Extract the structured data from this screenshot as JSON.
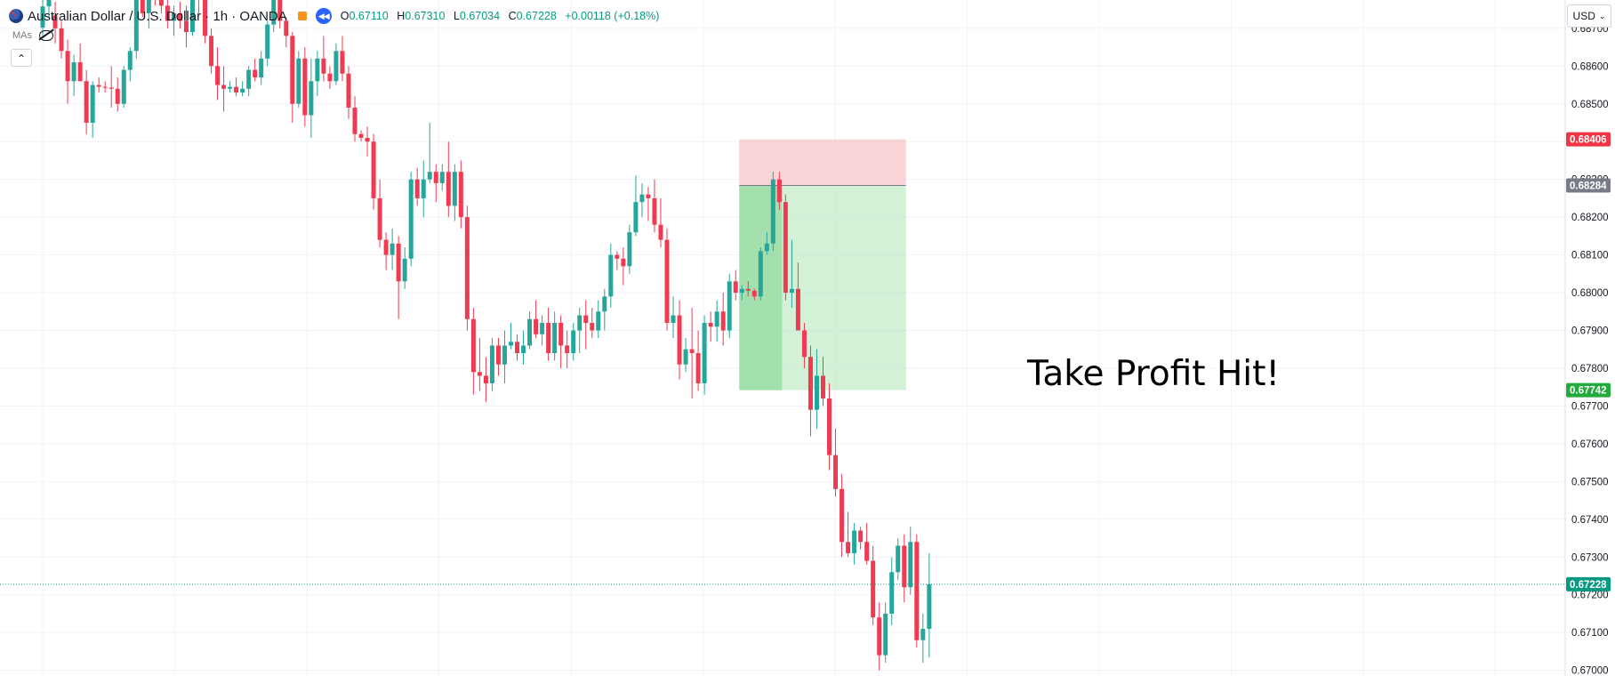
{
  "header": {
    "symbol": "Australian Dollar / U.S. Dollar · 1h · OANDA",
    "open_label": "O",
    "open": "0.67110",
    "high_label": "H",
    "high": "0.67310",
    "low_label": "L",
    "low": "0.67034",
    "close_label": "C",
    "close": "0.67228",
    "change": "+0.00118 (+0.18%)",
    "icons": [
      "aud-flag-icon",
      "orange-status-icon",
      "replay-icon"
    ]
  },
  "indicators": {
    "label": "MAs",
    "visibility_icon": "eye-off-icon"
  },
  "collapse_icon": "chevron-up-icon",
  "currency": {
    "label": "USD",
    "icon": "chevron-down-icon"
  },
  "annotation": "Take Profit Hit!",
  "colors": {
    "up": "#26a69a",
    "down": "#ef3b52",
    "grid": "#f0f3fa",
    "stop_zone": "#f7b9bd",
    "target_zone": "#a5e3af",
    "stop_badge": "#f23645",
    "entry_badge": "#787b86",
    "target_badge": "#22ab3d",
    "current_badge": "#089981"
  },
  "chart_data": {
    "type": "candlestick",
    "title": "Australian Dollar / U.S. Dollar · 1h · OANDA",
    "xlabel": "",
    "ylabel": "",
    "y_axis": {
      "position": "right",
      "ticks": [
        "0.68700",
        "0.68600",
        "0.68500",
        "0.68400",
        "0.68300",
        "0.68200",
        "0.68100",
        "0.68000",
        "0.67900",
        "0.67800",
        "0.67700",
        "0.67600",
        "0.67500",
        "0.67400",
        "0.67300",
        "0.67200",
        "0.67100",
        "0.67000"
      ]
    },
    "ylim": [
      0.66985,
      0.68775
    ],
    "grid": true,
    "price_badges": [
      {
        "name": "stop-loss-badge",
        "label": "0.68406",
        "value": 0.68406,
        "color": "#f23645"
      },
      {
        "name": "entry-badge",
        "label": "0.68284",
        "value": 0.68284,
        "color": "#787b86"
      },
      {
        "name": "take-profit-badge",
        "label": "0.67742",
        "value": 0.67742,
        "color": "#22ab3d"
      },
      {
        "name": "current-price-badge",
        "label": "0.67228",
        "value": 0.67228,
        "color": "#089981"
      }
    ],
    "position": {
      "side": "short",
      "entry": 0.68284,
      "stop": 0.68406,
      "target": 0.67742,
      "start_index": 112,
      "end_index": 134,
      "hit_index": 118
    },
    "candles": [
      {
        "o": 0.68702,
        "h": 0.68786,
        "l": 0.68674,
        "c": 0.68758
      },
      {
        "o": 0.68758,
        "h": 0.68842,
        "l": 0.6873,
        "c": 0.68814
      },
      {
        "o": 0.68734,
        "h": 0.6877,
        "l": 0.6866,
        "c": 0.687
      },
      {
        "o": 0.687,
        "h": 0.6872,
        "l": 0.6862,
        "c": 0.6864
      },
      {
        "o": 0.6864,
        "h": 0.6867,
        "l": 0.685,
        "c": 0.6856
      },
      {
        "o": 0.6856,
        "h": 0.6863,
        "l": 0.6852,
        "c": 0.6861
      },
      {
        "o": 0.6861,
        "h": 0.6866,
        "l": 0.6856,
        "c": 0.6856
      },
      {
        "o": 0.6856,
        "h": 0.6859,
        "l": 0.6842,
        "c": 0.6845
      },
      {
        "o": 0.6845,
        "h": 0.6856,
        "l": 0.6841,
        "c": 0.6855
      },
      {
        "o": 0.6855,
        "h": 0.6857,
        "l": 0.6853,
        "c": 0.68545
      },
      {
        "o": 0.68545,
        "h": 0.6856,
        "l": 0.6853,
        "c": 0.68543
      },
      {
        "o": 0.68543,
        "h": 0.686,
        "l": 0.6849,
        "c": 0.6854
      },
      {
        "o": 0.6854,
        "h": 0.6857,
        "l": 0.6848,
        "c": 0.685
      },
      {
        "o": 0.685,
        "h": 0.686,
        "l": 0.6849,
        "c": 0.6859
      },
      {
        "o": 0.6859,
        "h": 0.6865,
        "l": 0.6856,
        "c": 0.6864
      },
      {
        "o": 0.6864,
        "h": 0.6882,
        "l": 0.6862,
        "c": 0.6878
      },
      {
        "o": 0.6878,
        "h": 0.6883,
        "l": 0.6873,
        "c": 0.6874
      },
      {
        "o": 0.6874,
        "h": 0.6881,
        "l": 0.687,
        "c": 0.688
      },
      {
        "o": 0.688,
        "h": 0.6883,
        "l": 0.6876,
        "c": 0.6879
      },
      {
        "o": 0.6879,
        "h": 0.6882,
        "l": 0.6874,
        "c": 0.6876
      },
      {
        "o": 0.6876,
        "h": 0.6879,
        "l": 0.687,
        "c": 0.6872
      },
      {
        "o": 0.6872,
        "h": 0.6876,
        "l": 0.6868,
        "c": 0.6874
      },
      {
        "o": 0.6874,
        "h": 0.6877,
        "l": 0.687,
        "c": 0.6872
      },
      {
        "o": 0.6872,
        "h": 0.6876,
        "l": 0.6865,
        "c": 0.6869
      },
      {
        "o": 0.6869,
        "h": 0.688,
        "l": 0.6868,
        "c": 0.6878
      },
      {
        "o": 0.6878,
        "h": 0.688,
        "l": 0.6874,
        "c": 0.6879
      },
      {
        "o": 0.6879,
        "h": 0.688,
        "l": 0.6866,
        "c": 0.6868
      },
      {
        "o": 0.6868,
        "h": 0.687,
        "l": 0.6858,
        "c": 0.686
      },
      {
        "o": 0.686,
        "h": 0.6865,
        "l": 0.6851,
        "c": 0.6855
      },
      {
        "o": 0.6855,
        "h": 0.686,
        "l": 0.6848,
        "c": 0.6854
      },
      {
        "o": 0.6854,
        "h": 0.6856,
        "l": 0.6853,
        "c": 0.68545
      },
      {
        "o": 0.68545,
        "h": 0.6857,
        "l": 0.6852,
        "c": 0.6853
      },
      {
        "o": 0.6853,
        "h": 0.6856,
        "l": 0.6852,
        "c": 0.6854
      },
      {
        "o": 0.6854,
        "h": 0.686,
        "l": 0.6852,
        "c": 0.6859
      },
      {
        "o": 0.6859,
        "h": 0.6862,
        "l": 0.6856,
        "c": 0.6857
      },
      {
        "o": 0.6857,
        "h": 0.6864,
        "l": 0.6855,
        "c": 0.6862
      },
      {
        "o": 0.6862,
        "h": 0.6872,
        "l": 0.686,
        "c": 0.6871
      },
      {
        "o": 0.6871,
        "h": 0.688,
        "l": 0.6869,
        "c": 0.6878
      },
      {
        "o": 0.6878,
        "h": 0.6879,
        "l": 0.687,
        "c": 0.6872
      },
      {
        "o": 0.6872,
        "h": 0.6873,
        "l": 0.6865,
        "c": 0.6868
      },
      {
        "o": 0.6868,
        "h": 0.6869,
        "l": 0.6845,
        "c": 0.685
      },
      {
        "o": 0.685,
        "h": 0.6864,
        "l": 0.6849,
        "c": 0.6862
      },
      {
        "o": 0.6862,
        "h": 0.6865,
        "l": 0.6844,
        "c": 0.6847
      },
      {
        "o": 0.6847,
        "h": 0.6862,
        "l": 0.6841,
        "c": 0.6856
      },
      {
        "o": 0.6856,
        "h": 0.6864,
        "l": 0.6852,
        "c": 0.6862
      },
      {
        "o": 0.6862,
        "h": 0.6868,
        "l": 0.6856,
        "c": 0.6858
      },
      {
        "o": 0.6858,
        "h": 0.686,
        "l": 0.6854,
        "c": 0.6856
      },
      {
        "o": 0.6856,
        "h": 0.6866,
        "l": 0.6855,
        "c": 0.6864
      },
      {
        "o": 0.6864,
        "h": 0.6868,
        "l": 0.6856,
        "c": 0.6858
      },
      {
        "o": 0.6858,
        "h": 0.686,
        "l": 0.6846,
        "c": 0.6849
      },
      {
        "o": 0.6849,
        "h": 0.6852,
        "l": 0.684,
        "c": 0.6842
      },
      {
        "o": 0.6842,
        "h": 0.6843,
        "l": 0.684,
        "c": 0.6841
      },
      {
        "o": 0.6841,
        "h": 0.6844,
        "l": 0.6836,
        "c": 0.684
      },
      {
        "o": 0.684,
        "h": 0.6842,
        "l": 0.6822,
        "c": 0.6825
      },
      {
        "o": 0.6825,
        "h": 0.683,
        "l": 0.6812,
        "c": 0.6814
      },
      {
        "o": 0.6814,
        "h": 0.6816,
        "l": 0.6806,
        "c": 0.681
      },
      {
        "o": 0.681,
        "h": 0.6817,
        "l": 0.6806,
        "c": 0.6813
      },
      {
        "o": 0.6813,
        "h": 0.6815,
        "l": 0.6793,
        "c": 0.6803
      },
      {
        "o": 0.6803,
        "h": 0.6812,
        "l": 0.6801,
        "c": 0.6809
      },
      {
        "o": 0.6809,
        "h": 0.6832,
        "l": 0.6807,
        "c": 0.683
      },
      {
        "o": 0.683,
        "h": 0.6833,
        "l": 0.6823,
        "c": 0.6825
      },
      {
        "o": 0.6825,
        "h": 0.6835,
        "l": 0.682,
        "c": 0.683
      },
      {
        "o": 0.683,
        "h": 0.6845,
        "l": 0.6829,
        "c": 0.6832
      },
      {
        "o": 0.6832,
        "h": 0.6834,
        "l": 0.6824,
        "c": 0.6829
      },
      {
        "o": 0.6829,
        "h": 0.6834,
        "l": 0.6827,
        "c": 0.6832
      },
      {
        "o": 0.6832,
        "h": 0.684,
        "l": 0.682,
        "c": 0.6823
      },
      {
        "o": 0.6823,
        "h": 0.6834,
        "l": 0.6819,
        "c": 0.6832
      },
      {
        "o": 0.6832,
        "h": 0.6835,
        "l": 0.6817,
        "c": 0.682
      },
      {
        "o": 0.682,
        "h": 0.6823,
        "l": 0.679,
        "c": 0.6793
      },
      {
        "o": 0.6793,
        "h": 0.6796,
        "l": 0.6773,
        "c": 0.6779
      },
      {
        "o": 0.6779,
        "h": 0.6788,
        "l": 0.6774,
        "c": 0.6778
      },
      {
        "o": 0.6778,
        "h": 0.6783,
        "l": 0.6771,
        "c": 0.6776
      },
      {
        "o": 0.6776,
        "h": 0.6788,
        "l": 0.6774,
        "c": 0.6786
      },
      {
        "o": 0.6786,
        "h": 0.6788,
        "l": 0.6778,
        "c": 0.6781
      },
      {
        "o": 0.6781,
        "h": 0.679,
        "l": 0.6776,
        "c": 0.6786
      },
      {
        "o": 0.6786,
        "h": 0.6792,
        "l": 0.6785,
        "c": 0.6787
      },
      {
        "o": 0.6787,
        "h": 0.6789,
        "l": 0.6782,
        "c": 0.6784
      },
      {
        "o": 0.6784,
        "h": 0.679,
        "l": 0.6781,
        "c": 0.6786
      },
      {
        "o": 0.6786,
        "h": 0.6795,
        "l": 0.6785,
        "c": 0.6793
      },
      {
        "o": 0.6793,
        "h": 0.6798,
        "l": 0.6788,
        "c": 0.6789
      },
      {
        "o": 0.6789,
        "h": 0.6794,
        "l": 0.6786,
        "c": 0.6792
      },
      {
        "o": 0.6792,
        "h": 0.6796,
        "l": 0.6782,
        "c": 0.6784
      },
      {
        "o": 0.6784,
        "h": 0.6795,
        "l": 0.6782,
        "c": 0.6792
      },
      {
        "o": 0.6792,
        "h": 0.6794,
        "l": 0.678,
        "c": 0.6786
      },
      {
        "o": 0.6786,
        "h": 0.679,
        "l": 0.678,
        "c": 0.6784
      },
      {
        "o": 0.6784,
        "h": 0.6792,
        "l": 0.6782,
        "c": 0.679
      },
      {
        "o": 0.679,
        "h": 0.6796,
        "l": 0.6784,
        "c": 0.6794
      },
      {
        "o": 0.6794,
        "h": 0.6798,
        "l": 0.6785,
        "c": 0.6792
      },
      {
        "o": 0.6792,
        "h": 0.6796,
        "l": 0.6788,
        "c": 0.679
      },
      {
        "o": 0.679,
        "h": 0.6798,
        "l": 0.6788,
        "c": 0.6795
      },
      {
        "o": 0.6795,
        "h": 0.6801,
        "l": 0.679,
        "c": 0.6799
      },
      {
        "o": 0.6799,
        "h": 0.6813,
        "l": 0.6796,
        "c": 0.681
      },
      {
        "o": 0.681,
        "h": 0.6811,
        "l": 0.6806,
        "c": 0.6809
      },
      {
        "o": 0.6809,
        "h": 0.6812,
        "l": 0.6802,
        "c": 0.6807
      },
      {
        "o": 0.6807,
        "h": 0.6818,
        "l": 0.6805,
        "c": 0.6816
      },
      {
        "o": 0.6816,
        "h": 0.6831,
        "l": 0.6815,
        "c": 0.6824
      },
      {
        "o": 0.6824,
        "h": 0.6829,
        "l": 0.682,
        "c": 0.6826
      },
      {
        "o": 0.6826,
        "h": 0.6828,
        "l": 0.6819,
        "c": 0.6825
      },
      {
        "o": 0.6825,
        "h": 0.683,
        "l": 0.6816,
        "c": 0.6818
      },
      {
        "o": 0.6818,
        "h": 0.6825,
        "l": 0.6812,
        "c": 0.6814
      },
      {
        "o": 0.6814,
        "h": 0.6817,
        "l": 0.679,
        "c": 0.6792
      },
      {
        "o": 0.6792,
        "h": 0.6799,
        "l": 0.6788,
        "c": 0.6794
      },
      {
        "o": 0.6794,
        "h": 0.6798,
        "l": 0.6777,
        "c": 0.6781
      },
      {
        "o": 0.6781,
        "h": 0.6788,
        "l": 0.6779,
        "c": 0.6785
      },
      {
        "o": 0.6785,
        "h": 0.6796,
        "l": 0.6772,
        "c": 0.6784
      },
      {
        "o": 0.6784,
        "h": 0.679,
        "l": 0.6774,
        "c": 0.6776
      },
      {
        "o": 0.6776,
        "h": 0.6794,
        "l": 0.6773,
        "c": 0.6792
      },
      {
        "o": 0.6792,
        "h": 0.6795,
        "l": 0.6787,
        "c": 0.6791
      },
      {
        "o": 0.6791,
        "h": 0.6798,
        "l": 0.6787,
        "c": 0.6795
      },
      {
        "o": 0.6795,
        "h": 0.68,
        "l": 0.6786,
        "c": 0.679
      },
      {
        "o": 0.679,
        "h": 0.6805,
        "l": 0.6788,
        "c": 0.6803
      },
      {
        "o": 0.6803,
        "h": 0.6806,
        "l": 0.6798,
        "c": 0.68
      },
      {
        "o": 0.68,
        "h": 0.6802,
        "l": 0.6798,
        "c": 0.6801
      },
      {
        "o": 0.6801,
        "h": 0.6803,
        "l": 0.6799,
        "c": 0.68005
      },
      {
        "o": 0.68005,
        "h": 0.6801,
        "l": 0.6798,
        "c": 0.6799
      },
      {
        "o": 0.6799,
        "h": 0.6812,
        "l": 0.6798,
        "c": 0.6811
      },
      {
        "o": 0.6811,
        "h": 0.6816,
        "l": 0.681,
        "c": 0.6813
      },
      {
        "o": 0.6813,
        "h": 0.6832,
        "l": 0.6811,
        "c": 0.683
      },
      {
        "o": 0.683,
        "h": 0.6832,
        "l": 0.6822,
        "c": 0.6824
      },
      {
        "o": 0.6824,
        "h": 0.6826,
        "l": 0.6798,
        "c": 0.68
      },
      {
        "o": 0.68,
        "h": 0.6814,
        "l": 0.6796,
        "c": 0.6801
      },
      {
        "o": 0.6801,
        "h": 0.6808,
        "l": 0.6791,
        "c": 0.679
      },
      {
        "o": 0.679,
        "h": 0.6792,
        "l": 0.678,
        "c": 0.6783
      },
      {
        "o": 0.6783,
        "h": 0.6786,
        "l": 0.6762,
        "c": 0.6769
      },
      {
        "o": 0.6769,
        "h": 0.6785,
        "l": 0.6764,
        "c": 0.6778
      },
      {
        "o": 0.6778,
        "h": 0.6783,
        "l": 0.677,
        "c": 0.6772
      },
      {
        "o": 0.6772,
        "h": 0.6776,
        "l": 0.6753,
        "c": 0.6757
      },
      {
        "o": 0.6757,
        "h": 0.6764,
        "l": 0.6746,
        "c": 0.6748
      },
      {
        "o": 0.6748,
        "h": 0.6752,
        "l": 0.673,
        "c": 0.6734
      },
      {
        "o": 0.6734,
        "h": 0.6742,
        "l": 0.673,
        "c": 0.6731
      },
      {
        "o": 0.6731,
        "h": 0.6739,
        "l": 0.6728,
        "c": 0.6737
      },
      {
        "o": 0.6737,
        "h": 0.6738,
        "l": 0.6732,
        "c": 0.6734
      },
      {
        "o": 0.6734,
        "h": 0.6739,
        "l": 0.6728,
        "c": 0.6729
      },
      {
        "o": 0.6729,
        "h": 0.6733,
        "l": 0.6712,
        "c": 0.6714
      },
      {
        "o": 0.6714,
        "h": 0.6718,
        "l": 0.67,
        "c": 0.6704
      },
      {
        "o": 0.6704,
        "h": 0.6718,
        "l": 0.6702,
        "c": 0.6715
      },
      {
        "o": 0.6715,
        "h": 0.673,
        "l": 0.6712,
        "c": 0.6726
      },
      {
        "o": 0.6726,
        "h": 0.6735,
        "l": 0.6724,
        "c": 0.6733
      },
      {
        "o": 0.6733,
        "h": 0.6736,
        "l": 0.6718,
        "c": 0.6722
      },
      {
        "o": 0.6722,
        "h": 0.6738,
        "l": 0.672,
        "c": 0.6734
      },
      {
        "o": 0.6734,
        "h": 0.6736,
        "l": 0.6706,
        "c": 0.6708
      },
      {
        "o": 0.6708,
        "h": 0.6715,
        "l": 0.6702,
        "c": 0.6711
      },
      {
        "o": 0.6711,
        "h": 0.6731,
        "l": 0.67034,
        "c": 0.67228
      }
    ]
  }
}
